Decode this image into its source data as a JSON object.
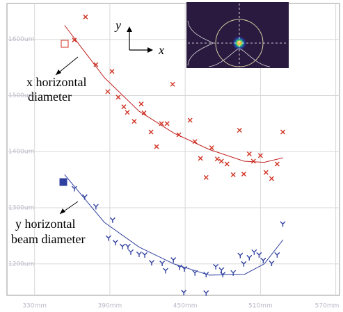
{
  "chart_data": {
    "type": "scatter",
    "xlim": [
      308,
      573
    ],
    "ylim": [
      1144,
      1664
    ],
    "xticks": [
      {
        "value": 330,
        "label": "330mm"
      },
      {
        "value": 390,
        "label": "390mm"
      },
      {
        "value": 450,
        "label": "450mm"
      },
      {
        "value": 510,
        "label": "510mm"
      },
      {
        "value": 570,
        "label": "570mm"
      }
    ],
    "yticks": [
      {
        "value": 1200,
        "label": "1200um"
      },
      {
        "value": 1300,
        "label": "1300um"
      },
      {
        "value": 1400,
        "label": "1400um"
      },
      {
        "value": 1500,
        "label": "1500um"
      },
      {
        "value": 1600,
        "label": "1600um"
      }
    ],
    "grid": true,
    "series": [
      {
        "color": "#d03020",
        "marker": "x",
        "x": [
          370.6,
          361.7,
          378.9,
          391.7,
          388.3,
          396.7,
          401.1,
          403.9,
          409.4,
          415,
          417.2,
          422.8,
          427.2,
          431.1,
          435.6,
          440,
          445,
          453.9,
          457.8,
          462.2,
          466.7,
          471.1,
          475.6,
          478.9,
          483.3,
          488.3,
          493.3,
          496.7,
          501.1,
          504.4,
          510,
          514.4,
          518.9,
          523.3,
          527.8
        ],
        "values": [
          1640,
          1599,
          1555,
          1543,
          1507,
          1497,
          1480,
          1470,
          1454,
          1485,
          1469,
          1435,
          1409,
          1450,
          1450,
          1520,
          1430,
          1456,
          1418,
          1388,
          1354,
          1407,
          1387,
          1383,
          1378,
          1359,
          1438,
          1360,
          1396,
          1383,
          1393,
          1363,
          1352,
          1378,
          1435
        ]
      },
      {
        "color": "#c02020",
        "mode": "line",
        "x": [
          353.9,
          385.6,
          413.3,
          441,
          469,
          497,
          513,
          528
        ],
        "values": [
          1625,
          1532,
          1472,
          1433,
          1404,
          1383,
          1381,
          1389
        ]
      },
      {
        "color": "#3040a0",
        "marker": "y",
        "x": [
          361.7,
          370,
          378.9,
          392.2,
          388.9,
          394.4,
          400,
          404.4,
          406.7,
          413.3,
          417.8,
          423.3,
          431.7,
          434.4,
          440.6,
          445.6,
          449.4,
          457.8,
          466.7,
          448.9,
          466.7,
          474.4,
          478.9,
          480,
          488.3,
          493.9,
          496.7,
          501.1,
          505,
          508.9,
          512.2,
          518.9,
          523.3,
          527.8
        ],
        "values": [
          1334,
          1319,
          1302,
          1278,
          1246,
          1238,
          1231,
          1231,
          1221,
          1217,
          1216,
          1202,
          1201,
          1188,
          1207,
          1194,
          1191,
          1184,
          1181,
          1149,
          1148,
          1195,
          1189,
          1181,
          1184,
          1215,
          1200,
          1211,
          1221,
          1216,
          1206,
          1201,
          1216,
          1271
        ]
      },
      {
        "color": "#3040a0",
        "mode": "line",
        "x": [
          353.9,
          385.6,
          413.3,
          441,
          469,
          497,
          513,
          528
        ],
        "values": [
          1359,
          1274,
          1230,
          1200,
          1180,
          1181,
          1200,
          1243
        ]
      }
    ],
    "annotations": {
      "x_axis_symbol": "x",
      "y_axis_symbol": "y",
      "x_label_1": "x horizontal",
      "x_label_2": "diameter",
      "y_label_1": "y horizontal",
      "y_label_2": "beam diameter"
    }
  }
}
